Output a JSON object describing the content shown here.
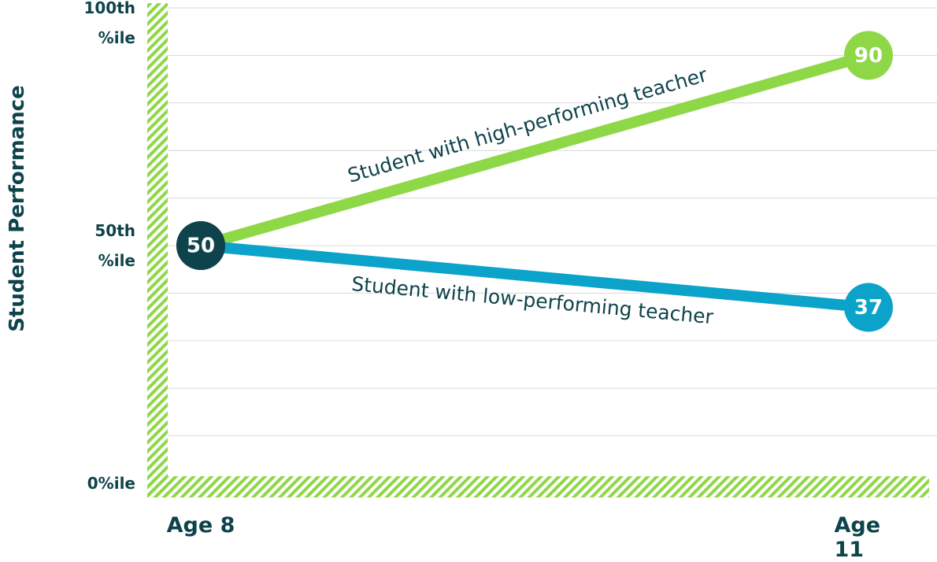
{
  "chart_data": {
    "type": "line",
    "y_label": "Student Performance",
    "categories": [
      "Age 8",
      "Age 11"
    ],
    "series": [
      {
        "name": "Student with high-performing teacher",
        "color": "#8ed847",
        "values": [
          50,
          90
        ]
      },
      {
        "name": "Student with low-performing teacher",
        "color": "#0ba3c9",
        "values": [
          50,
          37
        ]
      }
    ],
    "start_color": "#0f434b",
    "ylim": [
      0,
      100
    ],
    "yticks": [
      {
        "value": 0,
        "label": "0%ile"
      },
      {
        "value": 50,
        "label": "50th\n%ile"
      },
      {
        "value": 100,
        "label": "100th\n%ile"
      }
    ],
    "ygrid": [
      10,
      20,
      30,
      40,
      50,
      60,
      70,
      80,
      90,
      100
    ],
    "grid": true
  }
}
